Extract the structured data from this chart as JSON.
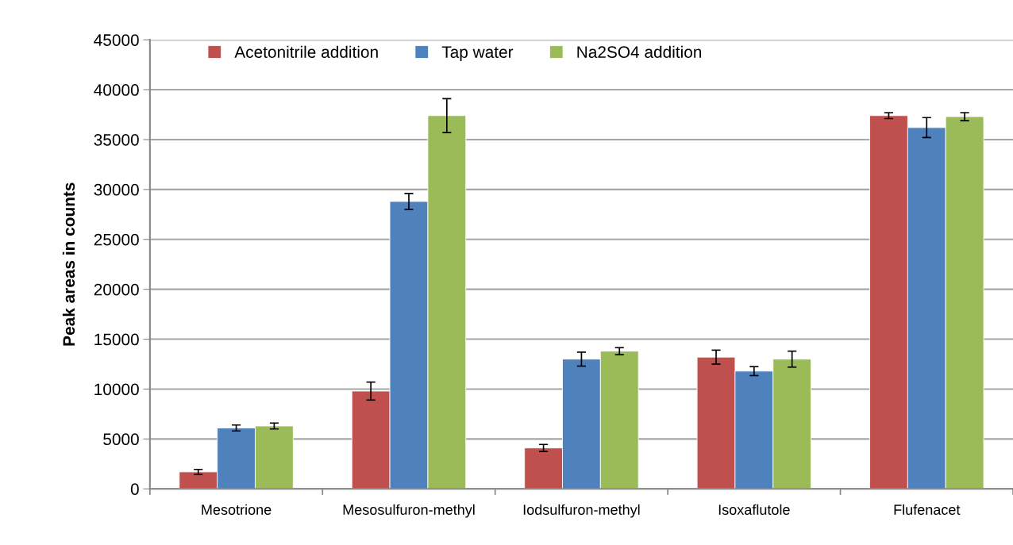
{
  "chart_data": {
    "type": "bar",
    "ylabel": "Peak areas in counts",
    "categories": [
      "Mesotrione",
      "Mesosulfuron-methyl",
      "Iodsulfuron-methyl",
      "Isoxaflutole",
      "Flufenacet"
    ],
    "series": [
      {
        "name": "Acetonitrile addition",
        "color": "#c0504d",
        "values": [
          1700,
          9800,
          4100,
          13200,
          37400
        ],
        "errors": [
          250,
          900,
          350,
          700,
          300
        ]
      },
      {
        "name": "Tap water",
        "color": "#4f81bd",
        "values": [
          6100,
          28800,
          13000,
          11800,
          36200
        ],
        "errors": [
          300,
          800,
          700,
          450,
          1000
        ]
      },
      {
        "name": "Na2SO4 addition",
        "color": "#9bbb59",
        "values": [
          6300,
          37400,
          13800,
          13000,
          37300
        ],
        "errors": [
          300,
          1700,
          350,
          800,
          400
        ]
      }
    ],
    "ylim": [
      0,
      45000
    ],
    "yticks": [
      0,
      5000,
      10000,
      15000,
      20000,
      25000,
      30000,
      35000,
      40000,
      45000
    ],
    "grid": "y",
    "legend": "top left"
  }
}
